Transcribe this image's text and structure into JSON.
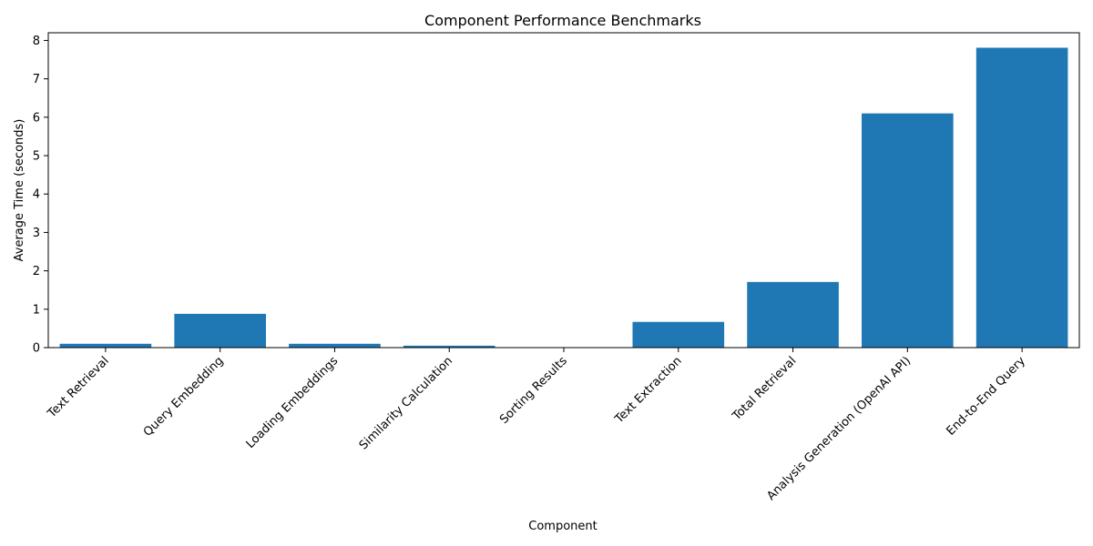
{
  "chart_data": {
    "type": "bar",
    "title": "Component Performance Benchmarks",
    "xlabel": "Component",
    "ylabel": "Average Time (seconds)",
    "categories": [
      "Text Retrieval",
      "Query Embedding",
      "Loading Embeddings",
      "Similarity Calculation",
      "Sorting Results",
      "Text Extraction",
      "Total Retrieval",
      "Analysis Generation (OpenAI API)",
      "End-to-End Query"
    ],
    "values": [
      0.1,
      0.88,
      0.1,
      0.05,
      0.0,
      0.67,
      1.71,
      6.1,
      7.81
    ],
    "ylim": [
      0,
      8.2
    ],
    "yticks": [
      0,
      1,
      2,
      3,
      4,
      5,
      6,
      7,
      8
    ],
    "grid": false,
    "legend": "none",
    "bar_color": "#1f77b4"
  }
}
